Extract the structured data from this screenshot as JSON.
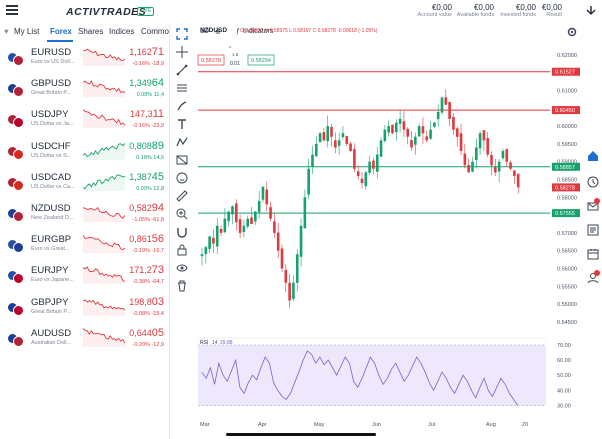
{
  "header": {
    "brand": "ACTIVTRADES",
    "live_badge": "LIVE",
    "account": [
      {
        "value": "€0,00",
        "label": "Account value"
      },
      {
        "value": "€0,00",
        "label": "Available funds"
      },
      {
        "value": "€0,00",
        "label": "Invested funds"
      },
      {
        "value": "€0,00",
        "label": "Result"
      }
    ]
  },
  "tabs": [
    {
      "label": "My List"
    },
    {
      "label": "Forex"
    },
    {
      "label": "Shares"
    },
    {
      "label": "Indices"
    },
    {
      "label": "Commo"
    }
  ],
  "instruments": [
    {
      "symbol": "EURUSD",
      "desc": "Euro vs US Doll...",
      "price_main": "1,162",
      "price_big": "71",
      "dir": "dn",
      "chg": "-0.16% -18,9",
      "spark": "dn",
      "flags": [
        "#2451a6",
        "#b22234"
      ]
    },
    {
      "symbol": "GBPUSD",
      "desc": "Great Britain P...",
      "price_main": "1,349",
      "price_big": "64",
      "dir": "up",
      "chg": "0.08% 11,4",
      "spark": "dn",
      "flags": [
        "#1c3f95",
        "#b22234"
      ]
    },
    {
      "symbol": "USDJPY",
      "desc": "US Dollar vs Ja...",
      "price_main": "147,3",
      "price_big": "11",
      "dir": "dn",
      "chg": "-0.16% -23,9",
      "spark": "dn",
      "flags": [
        "#b22234",
        "#bc002d"
      ]
    },
    {
      "symbol": "USDCHF",
      "desc": "US Dollar vs S...",
      "price_main": "0,808",
      "price_big": "89",
      "dir": "up",
      "chg": "0.18% 14,6",
      "spark": "up",
      "flags": [
        "#b22234",
        "#d52b1e"
      ]
    },
    {
      "symbol": "USDCAD",
      "desc": "US Dollar vs Ca...",
      "price_main": "1,387",
      "price_big": "45",
      "dir": "up",
      "chg": "0.09% 12,8",
      "spark": "up",
      "flags": [
        "#b22234",
        "#d52b1e"
      ]
    },
    {
      "symbol": "NZDUSD",
      "desc": "New Zealand D...",
      "price_main": "0,582",
      "price_big": "94",
      "dir": "dn",
      "chg": "-1.05% -61,8",
      "spark": "dn",
      "flags": [
        "#1c3f95",
        "#b22234"
      ]
    },
    {
      "symbol": "EURGBP",
      "desc": "Euro vs Great...",
      "price_main": "0,861",
      "price_big": "56",
      "dir": "dn",
      "chg": "-0.19% -16,7",
      "spark": "dn",
      "flags": [
        "#2451a6",
        "#1c3f95"
      ]
    },
    {
      "symbol": "EURJPY",
      "desc": "Euro vs Japane...",
      "price_main": "171,2",
      "price_big": "73",
      "dir": "dn",
      "chg": "-0.38% -64,7",
      "spark": "dn",
      "flags": [
        "#2451a6",
        "#bc002d"
      ]
    },
    {
      "symbol": "GBPJPY",
      "desc": "Great Britain P...",
      "price_main": "198,8",
      "price_big": "03",
      "dir": "dn",
      "chg": "-0.08% -15,4",
      "spark": "dn",
      "flags": [
        "#1c3f95",
        "#bc002d"
      ]
    },
    {
      "symbol": "AUDUSD",
      "desc": "Australian Doll...",
      "price_main": "0,644",
      "price_big": "05",
      "dir": "dn",
      "chg": "-0.20% -12,9",
      "spark": "dn",
      "flags": [
        "#1c3f95",
        "#b22234"
      ]
    }
  ],
  "chart_header": {
    "symbol": "NZDUSD",
    "interval": "1D",
    "ohlc": "O 0.58922  H 0.58975  L 0.58197  C 0.58278  -0.00618 (-1.05%)",
    "indicators_label": "Indicators",
    "bid": "0.58278",
    "ask": "0.58294",
    "spread": "1.6",
    "lot": "0.01",
    "collapse_label": "^"
  },
  "chart_data": {
    "type": "candlestick",
    "symbol": "NZDUSD",
    "interval": "1D",
    "x_labels": [
      "Mar",
      "Apr",
      "May",
      "Jun",
      "Jul",
      "Aug",
      "20"
    ],
    "y_ticks": [
      "0.62000",
      "0.61500",
      "0.61000",
      "0.60500",
      "0.60000",
      "0.59500",
      "0.59000",
      "0.58500",
      "0.58000",
      "0.57500",
      "0.57000",
      "0.56500",
      "0.56000",
      "0.55500",
      "0.55000",
      "0.54500"
    ],
    "ylim": [
      0.543,
      0.6225
    ],
    "price_lines": [
      {
        "label": "0.61527",
        "value": 0.61527,
        "color": "#e0393e"
      },
      {
        "label": "0.60450",
        "value": 0.6045,
        "color": "#e0393e"
      },
      {
        "label": "0.58857",
        "value": 0.58857,
        "color": "#16a36b"
      },
      {
        "label": "0.58278",
        "value": 0.58278,
        "color": "#e0393e"
      },
      {
        "label": "0.57555",
        "value": 0.57555,
        "color": "#16a36b"
      }
    ],
    "close_path": [
      0.564,
      0.566,
      0.569,
      0.567,
      0.572,
      0.57,
      0.574,
      0.576,
      0.5775,
      0.573,
      0.57,
      0.572,
      0.574,
      0.5725,
      0.576,
      0.579,
      0.583,
      0.578,
      0.574,
      0.57,
      0.565,
      0.56,
      0.556,
      0.551,
      0.556,
      0.564,
      0.572,
      0.58,
      0.588,
      0.592,
      0.595,
      0.598,
      0.596,
      0.6,
      0.597,
      0.594,
      0.596,
      0.598,
      0.595,
      0.593,
      0.588,
      0.586,
      0.584,
      0.587,
      0.59,
      0.588,
      0.592,
      0.596,
      0.599,
      0.6,
      0.598,
      0.601,
      0.602,
      0.599,
      0.597,
      0.594,
      0.597,
      0.6,
      0.598,
      0.596,
      0.599,
      0.601,
      0.604,
      0.608,
      0.606,
      0.602,
      0.599,
      0.597,
      0.593,
      0.589,
      0.587,
      0.59,
      0.594,
      0.598,
      0.596,
      0.592,
      0.589,
      0.587,
      0.59,
      0.593,
      0.59,
      0.588,
      0.586,
      0.5828
    ],
    "rsi": {
      "label": "RSI",
      "period": "14",
      "value": "29.88",
      "y_ticks": [
        "70.00",
        "60.00",
        "50.00",
        "40.00",
        "30.00"
      ],
      "ylim": [
        27,
        72
      ],
      "values": [
        52,
        48,
        55,
        44,
        58,
        50,
        46,
        53,
        60,
        42,
        38,
        45,
        50,
        47,
        55,
        62,
        58,
        45,
        40,
        36,
        34,
        38,
        45,
        52,
        60,
        66,
        64,
        58,
        62,
        57,
        60,
        55,
        50,
        56,
        62,
        58,
        46,
        42,
        48,
        55,
        62,
        58,
        50,
        44,
        48,
        54,
        58,
        52,
        46,
        50,
        56,
        62,
        58,
        52,
        45,
        40,
        46,
        52,
        48,
        42,
        38,
        44,
        50,
        46,
        40,
        35,
        42,
        48,
        40,
        36,
        42,
        48,
        44,
        38,
        34,
        30
      ]
    }
  },
  "colors": {
    "accent": "#1d6fd1",
    "up": "#16a36b",
    "down": "#e0393e",
    "rsi_fill": "#ede8fb",
    "rsi_line": "#7a63cf"
  }
}
